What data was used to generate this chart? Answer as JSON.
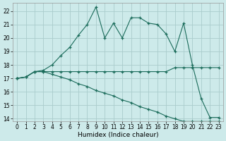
{
  "xlabel": "Humidex (Indice chaleur)",
  "background_color": "#cdeaea",
  "grid_color": "#aacccc",
  "line_color": "#1a6b5a",
  "xlim_min": -0.5,
  "xlim_max": 23.5,
  "ylim_min": 13.8,
  "ylim_max": 22.6,
  "xticks": [
    0,
    1,
    2,
    3,
    4,
    5,
    6,
    7,
    8,
    9,
    10,
    11,
    12,
    13,
    14,
    15,
    16,
    17,
    18,
    19,
    20,
    21,
    22,
    23
  ],
  "yticks": [
    14,
    15,
    16,
    17,
    18,
    19,
    20,
    21,
    22
  ],
  "series1_x": [
    0,
    1,
    2,
    3,
    4,
    5,
    6,
    7,
    8,
    9,
    10,
    11,
    12,
    13,
    14,
    15,
    16,
    17,
    18,
    19,
    20,
    21,
    22,
    23
  ],
  "series1_y": [
    17.0,
    17.1,
    17.5,
    17.5,
    17.5,
    17.5,
    17.5,
    17.5,
    17.5,
    17.5,
    17.5,
    17.5,
    17.5,
    17.5,
    17.5,
    17.5,
    17.5,
    17.5,
    17.8,
    17.8,
    17.8,
    17.8,
    17.8,
    17.8
  ],
  "series2_x": [
    0,
    1,
    2,
    3,
    4,
    5,
    6,
    7,
    8,
    9,
    10,
    11,
    12,
    13,
    14,
    15,
    16,
    17,
    18,
    19,
    20,
    21,
    22,
    23
  ],
  "series2_y": [
    17.0,
    17.1,
    17.5,
    17.5,
    17.3,
    17.1,
    16.9,
    16.6,
    16.4,
    16.1,
    15.9,
    15.7,
    15.4,
    15.2,
    14.9,
    14.7,
    14.5,
    14.2,
    14.0,
    13.8,
    13.8,
    13.8,
    13.8,
    13.8
  ],
  "series3_x": [
    0,
    1,
    2,
    3,
    4,
    5,
    6,
    7,
    8,
    9,
    10,
    11,
    12,
    13,
    14,
    15,
    16,
    17,
    18,
    19,
    20,
    21,
    22,
    23
  ],
  "series3_y": [
    17.0,
    17.1,
    17.5,
    17.6,
    18.0,
    18.7,
    19.3,
    20.2,
    21.0,
    22.3,
    20.0,
    21.1,
    20.0,
    21.5,
    21.5,
    21.1,
    21.0,
    20.3,
    19.0,
    21.1,
    18.0,
    15.5,
    14.1,
    14.1
  ]
}
